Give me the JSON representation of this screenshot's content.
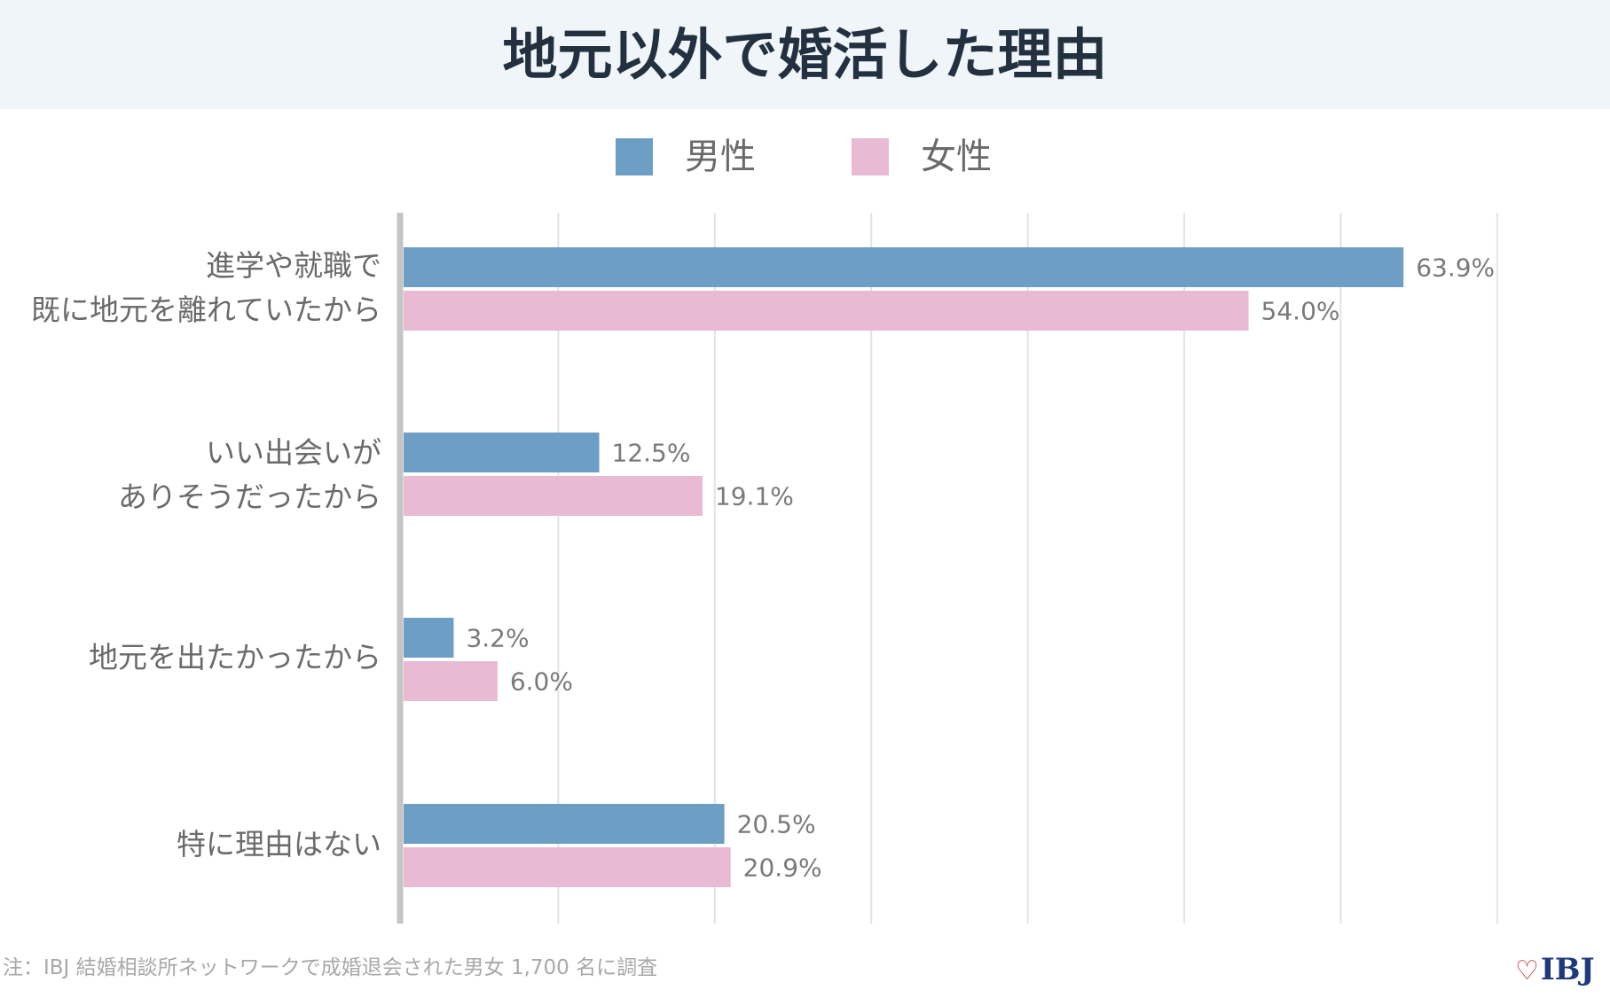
{
  "title": "地元以外で婚活した理由",
  "legend": [
    {
      "name": "男性",
      "color": "#6d9fc4"
    },
    {
      "name": "女性",
      "color": "#e8bad4"
    }
  ],
  "chart_data": {
    "type": "bar",
    "orientation": "horizontal",
    "title": "地元以外で婚活した理由",
    "categories": [
      [
        "進学や就職で",
        "既に地元を離れていたから"
      ],
      [
        "いい出会いが",
        "ありそうだったから"
      ],
      [
        "地元を出たかったから"
      ],
      [
        "特に理由はない"
      ]
    ],
    "series": [
      {
        "name": "男性",
        "color": "#6d9fc4",
        "values": [
          63.9,
          12.5,
          3.2,
          20.5
        ],
        "labels": [
          "63.9%",
          "12.5%",
          "3.2%",
          "20.5%"
        ]
      },
      {
        "name": "女性",
        "color": "#e8bad4",
        "values": [
          54.0,
          19.1,
          6.0,
          20.9
        ],
        "labels": [
          "54.0%",
          "19.1%",
          "6.0%",
          "20.9%"
        ]
      }
    ],
    "xlim": [
      0,
      70
    ],
    "grid": true,
    "legend_position": "top-center"
  },
  "footnote": "注：IBJ 結婚相談所ネットワークで成婚退会された男女 1,700 名に調査",
  "logo_text": "IBJ",
  "logo_icon": "heart-icon"
}
